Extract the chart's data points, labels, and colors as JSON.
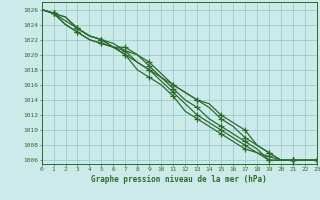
{
  "title": "Graphe pression niveau de la mer (hPa)",
  "bg_color": "#cceaea",
  "grid_color": "#99cccc",
  "line_color": "#2d6b2d",
  "xlim": [
    0,
    23
  ],
  "ylim": [
    1005.5,
    1027
  ],
  "xticks": [
    0,
    1,
    2,
    3,
    4,
    5,
    6,
    7,
    8,
    9,
    10,
    11,
    12,
    13,
    14,
    15,
    16,
    17,
    18,
    19,
    20,
    21,
    22,
    23
  ],
  "yticks": [
    1006,
    1008,
    1010,
    1012,
    1014,
    1016,
    1018,
    1020,
    1022,
    1024,
    1026
  ],
  "series": [
    [
      1026,
      1025.5,
      1025,
      1023.5,
      1022.5,
      1022,
      1021,
      1020,
      1019,
      1018,
      1017,
      1016,
      1015,
      1014,
      1013.5,
      1012,
      1011,
      1010,
      1008,
      1007,
      1006,
      1006,
      1006,
      1006
    ],
    [
      1026,
      1025.5,
      1024,
      1023,
      1022,
      1021.5,
      1021,
      1020.5,
      1020,
      1019,
      1017.5,
      1016,
      1015,
      1014,
      1013,
      1011.5,
      1010.5,
      1009,
      1008,
      1007,
      1006,
      1006,
      1006,
      1006
    ],
    [
      1026,
      1025.5,
      1024,
      1023,
      1022,
      1021.5,
      1021,
      1021,
      1020,
      1018.5,
      1017,
      1015.5,
      1014,
      1013,
      1011.5,
      1010.5,
      1009.5,
      1008.5,
      1007.5,
      1006,
      1006,
      1006,
      1006,
      1006
    ],
    [
      1026,
      1025.5,
      1024.5,
      1023.5,
      1022.5,
      1022,
      1021,
      1020,
      1018,
      1017,
      1016,
      1014.5,
      1012.5,
      1011.5,
      1010.5,
      1009.5,
      1008.5,
      1007.5,
      1007,
      1006.5,
      1006,
      1006,
      1006,
      1006
    ],
    [
      1026,
      1025.5,
      1025,
      1023.5,
      1022.5,
      1022,
      1021.5,
      1020.5,
      1019,
      1018,
      1016.5,
      1015,
      1013.5,
      1012,
      1011,
      1010,
      1009,
      1008,
      1007,
      1006,
      1006,
      1006,
      1006,
      1006
    ]
  ],
  "marker_x": [
    1,
    3,
    5,
    7,
    9,
    11,
    13,
    15,
    17,
    19,
    21,
    23
  ],
  "figsize": [
    3.2,
    2.0
  ],
  "dpi": 100
}
